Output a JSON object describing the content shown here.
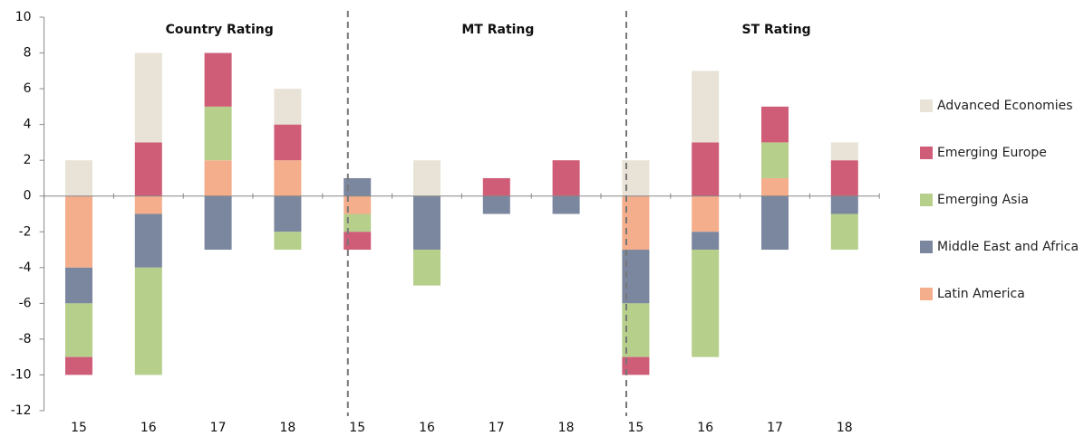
{
  "chart_data": {
    "type": "stacked_bar",
    "categories": [
      "15",
      "16",
      "17",
      "18",
      "15",
      "16",
      "17",
      "18",
      "15",
      "16",
      "17",
      "18"
    ],
    "annotations": [
      "Country Rating",
      "MT Rating",
      "ST Rating"
    ],
    "series": [
      {
        "name": "Advanced Economies",
        "color": "#e8e3d6",
        "values": [
          2,
          5,
          0,
          2,
          0,
          2,
          0,
          0,
          2,
          4,
          0,
          1
        ]
      },
      {
        "name": "Emerging Europe",
        "color": "#cf5d78",
        "values": [
          -1,
          3,
          3,
          2,
          -1,
          0,
          1,
          2,
          -1,
          3,
          2,
          2
        ]
      },
      {
        "name": "Emerging Asia",
        "color": "#b6cf8b",
        "values": [
          -3,
          -6,
          3,
          -1,
          -1,
          -2,
          0,
          0,
          -3,
          -6,
          2,
          -2
        ]
      },
      {
        "name": "Middle East and Africa",
        "color": "#7b879e",
        "values": [
          -2,
          -3,
          -3,
          -2,
          1,
          -3,
          -1,
          -1,
          -3,
          -1,
          -3,
          -1
        ]
      },
      {
        "name": "Latin America",
        "color": "#f5ae8c",
        "values": [
          -4,
          -1,
          2,
          2,
          -1,
          0,
          0,
          0,
          -3,
          -2,
          1,
          0
        ]
      }
    ],
    "ylim": [
      -12,
      10
    ],
    "yticks": [
      -12,
      -10,
      -8,
      -6,
      -4,
      -2,
      0,
      2,
      4,
      6,
      8,
      10
    ]
  }
}
